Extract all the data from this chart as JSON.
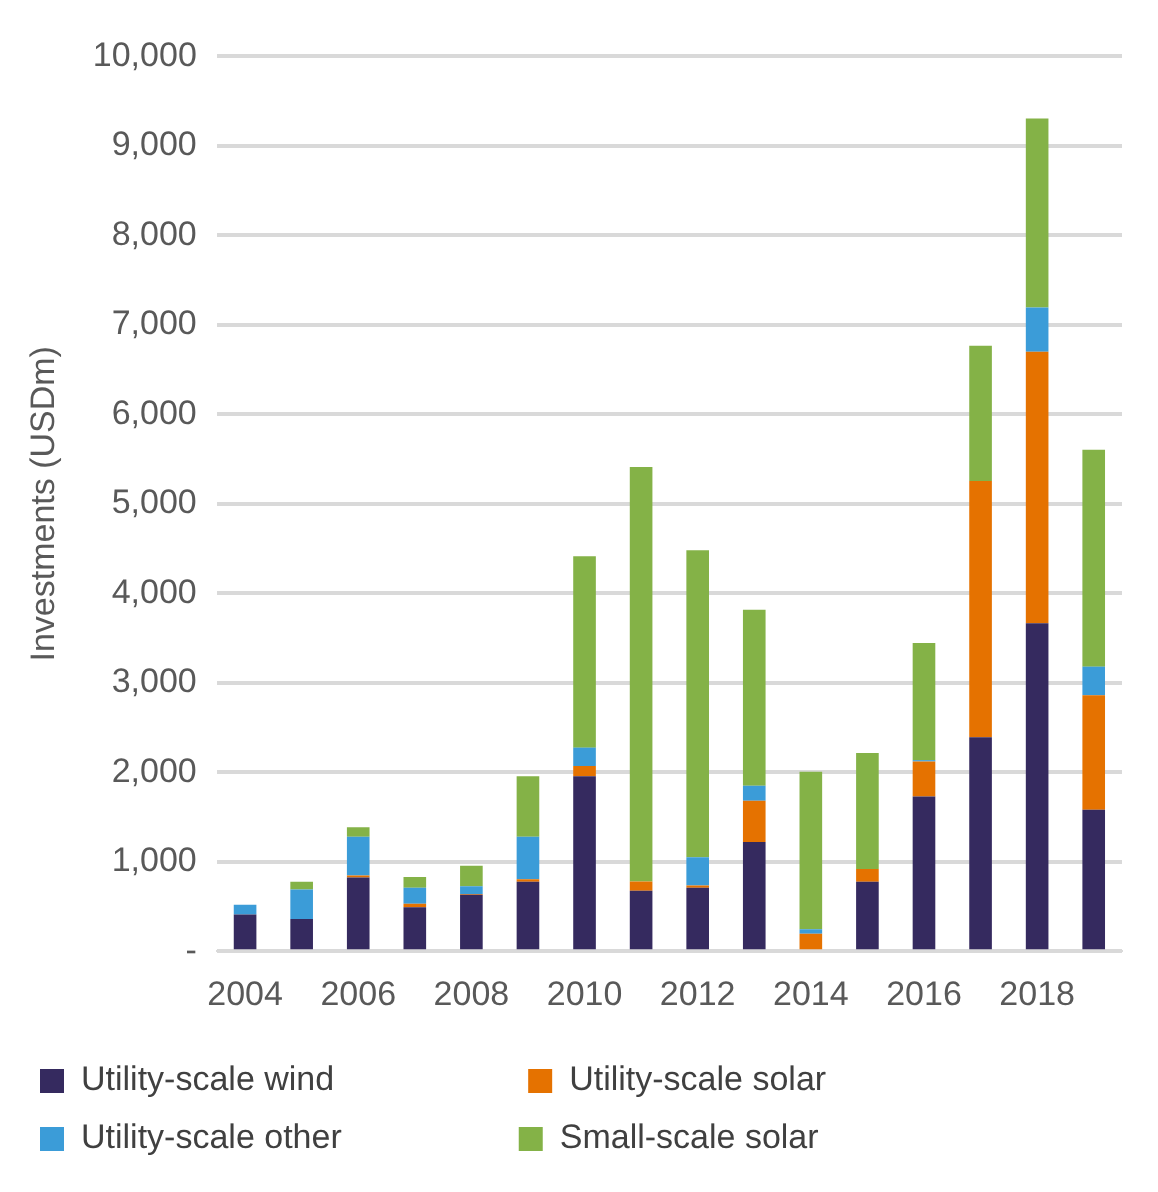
{
  "chart_data": {
    "type": "bar",
    "stacked": true,
    "ylabel": "Investments (USDm)",
    "categories": [
      "2004",
      null,
      "2006",
      null,
      "2008",
      null,
      "2010",
      null,
      "2012",
      null,
      "2014",
      null,
      "2016",
      null,
      "2018",
      null
    ],
    "series": [
      {
        "name": "Utility-scale wind",
        "color": "#352a5f",
        "values": [
          410,
          360,
          825,
          490,
          630,
          775,
          1955,
          675,
          710,
          1220,
          0,
          775,
          1730,
          2390,
          3665,
          1580
        ]
      },
      {
        "name": "Utility-scale solar",
        "color": "#e57200",
        "values": [
          0,
          0,
          20,
          40,
          10,
          30,
          115,
          105,
          25,
          460,
          195,
          145,
          390,
          2865,
          3035,
          1280
        ]
      },
      {
        "name": "Utility-scale other",
        "color": "#3b9cd8",
        "values": [
          110,
          330,
          435,
          180,
          85,
          475,
          205,
          0,
          315,
          170,
          50,
          0,
          15,
          0,
          495,
          320
        ]
      },
      {
        "name": "Small-scale solar",
        "color": "#84b247",
        "values": [
          0,
          85,
          105,
          120,
          230,
          675,
          2140,
          4630,
          3430,
          1965,
          1760,
          1295,
          1310,
          1510,
          2110,
          2425
        ]
      }
    ],
    "ylim": [
      0,
      10000
    ],
    "yticks": [
      {
        "value": 0,
        "label": "-"
      },
      {
        "value": 1000,
        "label": "1,000"
      },
      {
        "value": 2000,
        "label": "2,000"
      },
      {
        "value": 3000,
        "label": "3,000"
      },
      {
        "value": 4000,
        "label": "4,000"
      },
      {
        "value": 5000,
        "label": "5,000"
      },
      {
        "value": 6000,
        "label": "6,000"
      },
      {
        "value": 7000,
        "label": "7,000"
      },
      {
        "value": 8000,
        "label": "8,000"
      },
      {
        "value": 9000,
        "label": "9,000"
      },
      {
        "value": 10000,
        "label": "10,000"
      }
    ],
    "grid": "y",
    "legend": "bottom"
  }
}
